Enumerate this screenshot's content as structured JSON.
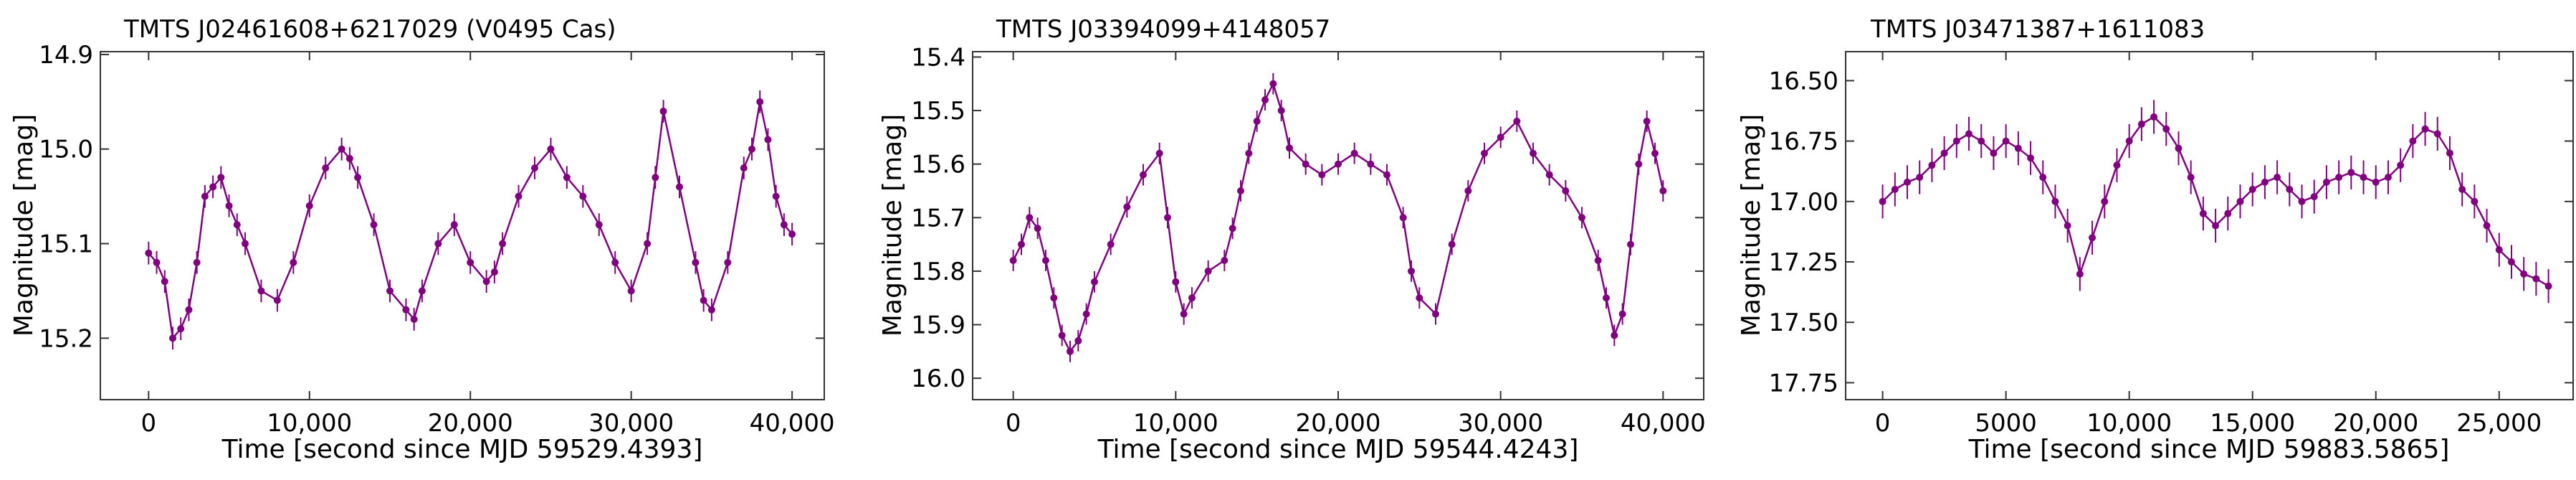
{
  "figure": {
    "series_color": "#800080"
  },
  "chart_data": [
    {
      "type": "scatter",
      "title": "TMTS J02461608+6217029 (V0495 Cas)",
      "xlabel": "Time [second since MJD 59529.4393]",
      "ylabel": "Magnitude [mag]",
      "xlim": [
        -3000,
        42000
      ],
      "ylim": [
        15.265,
        14.897
      ],
      "y_inverted": true,
      "grid": false,
      "xticks": [
        0,
        10000,
        20000,
        30000,
        40000
      ],
      "xtick_labels": [
        "0",
        "10,000",
        "20,000",
        "30,000",
        "40,000"
      ],
      "yticks": [
        14.9,
        15.0,
        15.1,
        15.2
      ],
      "ytick_labels": [
        "14.9",
        "15.0",
        "15.1",
        "15.2"
      ],
      "series": [
        {
          "x": [
            0,
            500,
            1000,
            1500,
            2000,
            2500,
            3000,
            3500,
            4000,
            4500,
            5000,
            5500,
            6000,
            7000,
            8000,
            9000,
            10000,
            11000,
            12000,
            12500,
            13000,
            14000,
            15000,
            16000,
            16500,
            17000,
            18000,
            19000,
            20000,
            21000,
            21500,
            22000,
            23000,
            24000,
            25000,
            26000,
            27000,
            28000,
            29000,
            30000,
            31000,
            31500,
            32000,
            33000,
            34000,
            34500,
            35000,
            36000,
            37000,
            37500,
            38000,
            38500,
            39000,
            39500,
            40000
          ],
          "y": [
            15.11,
            15.12,
            15.14,
            15.2,
            15.19,
            15.17,
            15.12,
            15.05,
            15.04,
            15.03,
            15.06,
            15.08,
            15.1,
            15.15,
            15.16,
            15.12,
            15.06,
            15.02,
            15.0,
            15.01,
            15.03,
            15.08,
            15.15,
            15.17,
            15.18,
            15.15,
            15.1,
            15.08,
            15.12,
            15.14,
            15.13,
            15.1,
            15.05,
            15.02,
            15.0,
            15.03,
            15.05,
            15.08,
            15.12,
            15.15,
            15.1,
            15.03,
            14.96,
            15.04,
            15.12,
            15.16,
            15.17,
            15.12,
            15.02,
            15.0,
            14.95,
            14.99,
            15.05,
            15.08,
            15.09
          ],
          "yerr": [
            0.012,
            0.012,
            0.012,
            0.012,
            0.012,
            0.012,
            0.012,
            0.012,
            0.012,
            0.012,
            0.012,
            0.012,
            0.012,
            0.012,
            0.012,
            0.012,
            0.012,
            0.012,
            0.012,
            0.012,
            0.012,
            0.012,
            0.012,
            0.012,
            0.012,
            0.012,
            0.012,
            0.012,
            0.012,
            0.012,
            0.012,
            0.012,
            0.012,
            0.012,
            0.012,
            0.012,
            0.012,
            0.012,
            0.012,
            0.012,
            0.012,
            0.012,
            0.012,
            0.012,
            0.012,
            0.012,
            0.012,
            0.012,
            0.012,
            0.012,
            0.012,
            0.012,
            0.012,
            0.012,
            0.012
          ]
        }
      ]
    },
    {
      "type": "scatter",
      "title": "TMTS J03394099+4148057",
      "xlabel": "Time [second since MJD 59544.4243]",
      "ylabel": "Magnitude [mag]",
      "xlim": [
        -2500,
        42500
      ],
      "ylim": [
        16.04,
        15.39
      ],
      "y_inverted": true,
      "grid": false,
      "xticks": [
        0,
        10000,
        20000,
        30000,
        40000
      ],
      "xtick_labels": [
        "0",
        "10,000",
        "20,000",
        "30,000",
        "40,000"
      ],
      "yticks": [
        15.4,
        15.5,
        15.6,
        15.7,
        15.8,
        15.9,
        16.0
      ],
      "ytick_labels": [
        "15.4",
        "15.5",
        "15.6",
        "15.7",
        "15.8",
        "15.9",
        "16.0"
      ],
      "series": [
        {
          "x": [
            0,
            500,
            1000,
            1500,
            2000,
            2500,
            3000,
            3500,
            4000,
            4500,
            5000,
            6000,
            7000,
            8000,
            9000,
            9500,
            10000,
            10500,
            11000,
            12000,
            13000,
            13500,
            14000,
            14500,
            15000,
            15500,
            16000,
            16500,
            17000,
            18000,
            19000,
            20000,
            21000,
            22000,
            23000,
            24000,
            24500,
            25000,
            26000,
            27000,
            28000,
            29000,
            30000,
            31000,
            32000,
            33000,
            34000,
            35000,
            36000,
            36500,
            37000,
            37500,
            38000,
            38500,
            39000,
            39500,
            40000
          ],
          "y": [
            15.78,
            15.75,
            15.7,
            15.72,
            15.78,
            15.85,
            15.92,
            15.95,
            15.93,
            15.88,
            15.82,
            15.75,
            15.68,
            15.62,
            15.58,
            15.7,
            15.82,
            15.88,
            15.85,
            15.8,
            15.78,
            15.72,
            15.65,
            15.58,
            15.52,
            15.48,
            15.45,
            15.5,
            15.57,
            15.6,
            15.62,
            15.6,
            15.58,
            15.6,
            15.62,
            15.7,
            15.8,
            15.85,
            15.88,
            15.75,
            15.65,
            15.58,
            15.55,
            15.52,
            15.58,
            15.62,
            15.65,
            15.7,
            15.78,
            15.85,
            15.92,
            15.88,
            15.75,
            15.6,
            15.52,
            15.58,
            15.65
          ],
          "yerr": [
            0.02,
            0.02,
            0.02,
            0.02,
            0.02,
            0.02,
            0.02,
            0.02,
            0.02,
            0.02,
            0.02,
            0.02,
            0.02,
            0.02,
            0.02,
            0.02,
            0.02,
            0.02,
            0.02,
            0.02,
            0.02,
            0.02,
            0.02,
            0.02,
            0.02,
            0.02,
            0.02,
            0.02,
            0.02,
            0.02,
            0.02,
            0.02,
            0.02,
            0.02,
            0.02,
            0.02,
            0.02,
            0.02,
            0.02,
            0.02,
            0.02,
            0.02,
            0.02,
            0.02,
            0.02,
            0.02,
            0.02,
            0.02,
            0.02,
            0.02,
            0.02,
            0.02,
            0.02,
            0.02,
            0.02,
            0.02,
            0.02
          ]
        }
      ]
    },
    {
      "type": "scatter",
      "title": "TMTS J03471387+1611083",
      "xlabel": "Time [second since MJD 59883.5865]",
      "ylabel": "Magnitude [mag]",
      "xlim": [
        -1500,
        28000
      ],
      "ylim": [
        17.82,
        16.38
      ],
      "y_inverted": true,
      "grid": false,
      "xticks": [
        0,
        5000,
        10000,
        15000,
        20000,
        25000
      ],
      "xtick_labels": [
        "0",
        "5000",
        "10,000",
        "15,000",
        "20,000",
        "25,000"
      ],
      "yticks": [
        16.5,
        16.75,
        17.0,
        17.25,
        17.5,
        17.75
      ],
      "ytick_labels": [
        "16.50",
        "16.75",
        "17.00",
        "17.25",
        "17.50",
        "17.75"
      ],
      "series": [
        {
          "x": [
            0,
            500,
            1000,
            1500,
            2000,
            2500,
            3000,
            3500,
            4000,
            4500,
            5000,
            5500,
            6000,
            6500,
            7000,
            7500,
            8000,
            8500,
            9000,
            9500,
            10000,
            10500,
            11000,
            11500,
            12000,
            12500,
            13000,
            13500,
            14000,
            14500,
            15000,
            15500,
            16000,
            16500,
            17000,
            17500,
            18000,
            18500,
            19000,
            19500,
            20000,
            20500,
            21000,
            21500,
            22000,
            22500,
            23000,
            23500,
            24000,
            24500,
            25000,
            25500,
            26000,
            26500,
            27000
          ],
          "y": [
            17.0,
            16.95,
            16.92,
            16.9,
            16.85,
            16.8,
            16.75,
            16.72,
            16.75,
            16.8,
            16.75,
            16.78,
            16.82,
            16.9,
            17.0,
            17.1,
            17.3,
            17.15,
            17.0,
            16.85,
            16.75,
            16.68,
            16.65,
            16.7,
            16.78,
            16.9,
            17.05,
            17.1,
            17.05,
            17.0,
            16.95,
            16.92,
            16.9,
            16.95,
            17.0,
            16.98,
            16.92,
            16.9,
            16.88,
            16.9,
            16.92,
            16.9,
            16.85,
            16.75,
            16.7,
            16.72,
            16.8,
            16.95,
            17.0,
            17.1,
            17.2,
            17.25,
            17.3,
            17.32,
            17.35
          ],
          "yerr": [
            0.07,
            0.07,
            0.07,
            0.07,
            0.07,
            0.07,
            0.07,
            0.07,
            0.07,
            0.07,
            0.07,
            0.07,
            0.07,
            0.07,
            0.07,
            0.07,
            0.07,
            0.07,
            0.07,
            0.07,
            0.07,
            0.07,
            0.07,
            0.07,
            0.07,
            0.07,
            0.07,
            0.07,
            0.07,
            0.07,
            0.07,
            0.07,
            0.07,
            0.07,
            0.07,
            0.07,
            0.07,
            0.07,
            0.07,
            0.07,
            0.07,
            0.07,
            0.07,
            0.07,
            0.07,
            0.07,
            0.07,
            0.07,
            0.07,
            0.07,
            0.07,
            0.07,
            0.07,
            0.07,
            0.07
          ]
        }
      ]
    }
  ]
}
